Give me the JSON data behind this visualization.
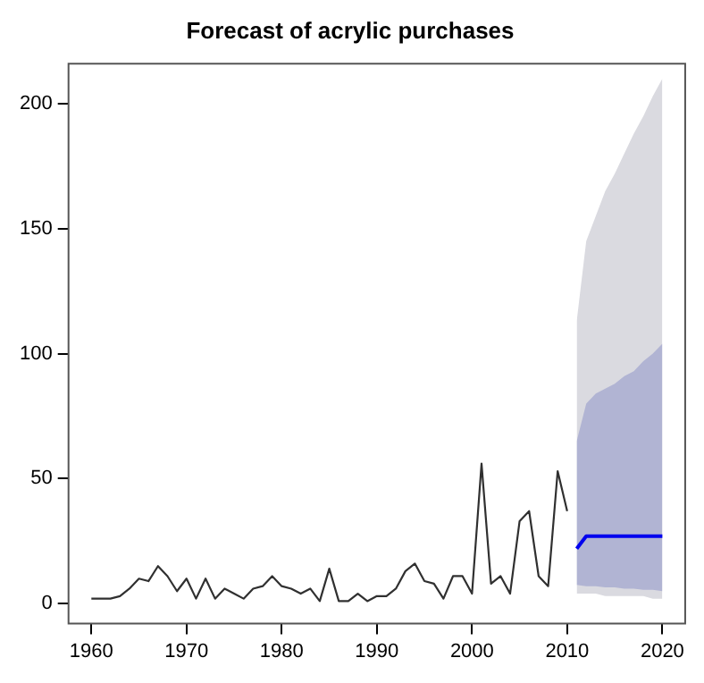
{
  "chart_data": {
    "type": "line",
    "title": "Forecast of acrylic purchases",
    "xlim": [
      1957.6,
      2022.4
    ],
    "ylim": [
      -8,
      216
    ],
    "xticks": [
      1960,
      1970,
      1980,
      1990,
      2000,
      2010,
      2020
    ],
    "yticks": [
      0,
      50,
      100,
      150,
      200
    ],
    "grid": false,
    "legend": false,
    "marker": "none",
    "line_style": "solid",
    "series": [
      {
        "color": "#dadae0",
        "x": [
          2011,
          2012,
          2013,
          2014,
          2015,
          2016,
          2017,
          2018,
          2019,
          2020
        ],
        "values": [
          null,
          null,
          null,
          null,
          null,
          null,
          null,
          null,
          null,
          null
        ],
        "lower": [
          4,
          4,
          4,
          3,
          3,
          3,
          3,
          3,
          2,
          2
        ],
        "upper": [
          113,
          145,
          155,
          165,
          172,
          180,
          188,
          195,
          203,
          210
        ]
      },
      {
        "color": "#303030",
        "x": [
          1960,
          1961,
          1962,
          1963,
          1964,
          1965,
          1966,
          1967,
          1968,
          1969,
          1970,
          1971,
          1972,
          1973,
          1974,
          1975,
          1976,
          1977,
          1978,
          1979,
          1980,
          1981,
          1982,
          1983,
          1984,
          1985,
          1986,
          1987,
          1988,
          1989,
          1990,
          1991,
          1992,
          1993,
          1994,
          1995,
          1996,
          1997,
          1998,
          1999,
          2000,
          2001,
          2002,
          2003,
          2004,
          2005,
          2006,
          2007,
          2008,
          2009,
          2010
        ],
        "values": [
          2,
          2,
          2,
          3,
          6,
          10,
          9,
          15,
          11,
          5,
          10,
          2,
          10,
          2,
          6,
          4,
          2,
          6,
          7,
          11,
          7,
          6,
          4,
          6,
          1,
          14,
          1,
          1,
          4,
          1,
          3,
          3,
          6,
          13,
          16,
          9,
          8,
          2,
          11,
          11,
          4,
          56,
          8,
          11,
          4,
          33,
          37,
          11,
          7,
          53,
          37
        ]
      },
      {
        "color": "#0000ee",
        "x": [
          2011,
          2012,
          2013,
          2014,
          2015,
          2016,
          2017,
          2018,
          2019,
          2020
        ],
        "values": [
          22,
          27,
          27,
          27,
          27,
          27,
          27,
          27,
          27,
          27
        ],
        "lower": [
          7.5,
          7,
          7,
          6.5,
          6.5,
          6,
          6,
          5.5,
          5.5,
          5
        ],
        "upper": [
          65,
          80,
          84,
          86,
          88,
          91,
          93,
          97,
          100,
          104
        ]
      }
    ]
  }
}
